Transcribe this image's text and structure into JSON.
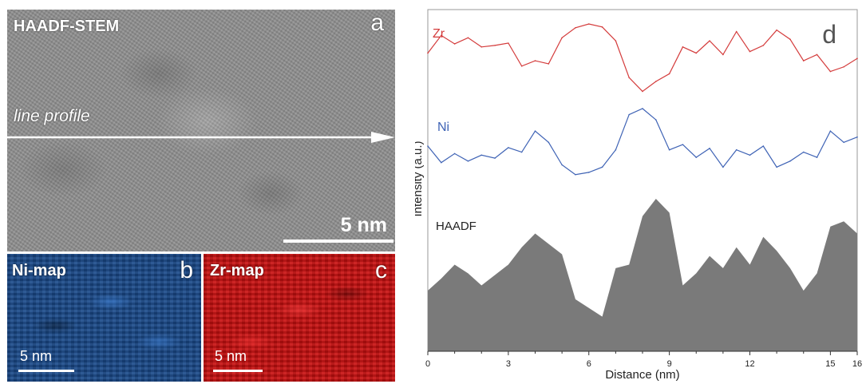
{
  "panel_a": {
    "title": "HAADF-STEM",
    "letter": "a",
    "line_label": "line profile",
    "scale": "5 nm"
  },
  "panel_b": {
    "title": "Ni-map",
    "letter": "b",
    "scale": "5 nm"
  },
  "panel_c": {
    "title": "Zr-map",
    "letter": "c",
    "scale": "5 nm"
  },
  "panel_d": {
    "letter": "d"
  },
  "chart_data": {
    "type": "line",
    "xlabel": "Distance (nm)",
    "ylabel": "Intensity (a.u.)",
    "xlim": [
      0,
      16
    ],
    "xticks": [
      "0",
      "3",
      "6",
      "9",
      "12",
      "15",
      "16"
    ],
    "colors": {
      "Zr": "#d43c3c",
      "Ni": "#3f63b5",
      "HAADF": "#7a7a7a"
    },
    "series": [
      {
        "name": "Zr",
        "x": [
          0,
          0.5,
          1,
          1.5,
          2,
          2.5,
          3,
          3.5,
          4,
          4.5,
          5,
          5.5,
          6,
          6.5,
          7,
          7.5,
          8,
          8.5,
          9,
          9.5,
          10,
          10.5,
          11,
          11.5,
          12,
          12.5,
          13,
          13.5,
          14,
          14.5,
          15,
          15.5,
          16
        ],
        "y": [
          0.62,
          0.85,
          0.74,
          0.82,
          0.7,
          0.72,
          0.75,
          0.45,
          0.52,
          0.48,
          0.82,
          0.95,
          1.0,
          0.96,
          0.78,
          0.3,
          0.12,
          0.25,
          0.35,
          0.7,
          0.62,
          0.78,
          0.6,
          0.9,
          0.64,
          0.72,
          0.92,
          0.8,
          0.52,
          0.6,
          0.38,
          0.44,
          0.55
        ]
      },
      {
        "name": "Ni",
        "x": [
          0,
          0.5,
          1,
          1.5,
          2,
          2.5,
          3,
          3.5,
          4,
          4.5,
          5,
          5.5,
          6,
          6.5,
          7,
          7.5,
          8,
          8.5,
          9,
          9.5,
          10,
          10.5,
          11,
          11.5,
          12,
          12.5,
          13,
          13.5,
          14,
          14.5,
          15,
          15.5,
          16
        ],
        "y": [
          0.5,
          0.28,
          0.4,
          0.3,
          0.38,
          0.34,
          0.48,
          0.42,
          0.7,
          0.55,
          0.25,
          0.12,
          0.15,
          0.22,
          0.45,
          0.92,
          1.0,
          0.85,
          0.45,
          0.52,
          0.35,
          0.47,
          0.22,
          0.45,
          0.38,
          0.5,
          0.22,
          0.3,
          0.42,
          0.35,
          0.7,
          0.55,
          0.62
        ]
      },
      {
        "name": "HAADF",
        "x": [
          0,
          0.5,
          1,
          1.5,
          2,
          2.5,
          3,
          3.5,
          4,
          4.5,
          5,
          5.5,
          6,
          6.5,
          7,
          7.5,
          8,
          8.5,
          9,
          9.5,
          10,
          10.5,
          11,
          11.5,
          12,
          12.5,
          13,
          13.5,
          14,
          14.5,
          15,
          15.5,
          16
        ],
        "y": [
          0.35,
          0.42,
          0.5,
          0.45,
          0.38,
          0.44,
          0.5,
          0.6,
          0.68,
          0.62,
          0.56,
          0.3,
          0.25,
          0.2,
          0.48,
          0.5,
          0.78,
          0.88,
          0.8,
          0.38,
          0.45,
          0.55,
          0.48,
          0.6,
          0.5,
          0.66,
          0.58,
          0.48,
          0.35,
          0.45,
          0.72,
          0.75,
          0.68
        ]
      }
    ]
  }
}
